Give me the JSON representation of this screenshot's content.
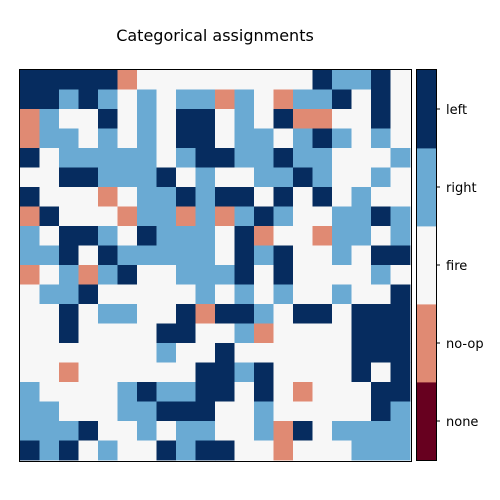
{
  "chart_data": {
    "type": "heatmap",
    "title": "Categorical assignments",
    "xlabel": "",
    "ylabel": "",
    "grid": false,
    "colorbar": {
      "placement": "right",
      "categories": [
        {
          "value": 0,
          "label": "none",
          "color": "#67001f"
        },
        {
          "value": 1,
          "label": "no-op",
          "color": "#e08a73"
        },
        {
          "value": 2,
          "label": "fire",
          "color": "#f7f7f7"
        },
        {
          "value": 3,
          "label": "right",
          "color": "#6aaad3"
        },
        {
          "value": 4,
          "label": "left",
          "color": "#062c5f"
        }
      ]
    },
    "rows": 20,
    "cols": 20,
    "grid_values": [
      [
        4,
        4,
        4,
        4,
        4,
        1,
        2,
        2,
        2,
        2,
        2,
        2,
        2,
        2,
        2,
        4,
        3,
        3,
        4,
        2
      ],
      [
        4,
        4,
        3,
        4,
        3,
        2,
        3,
        2,
        3,
        3,
        1,
        3,
        2,
        1,
        3,
        3,
        4,
        2,
        4,
        2
      ],
      [
        1,
        3,
        2,
        2,
        4,
        2,
        3,
        2,
        4,
        4,
        2,
        3,
        2,
        4,
        1,
        1,
        2,
        2,
        4,
        2
      ],
      [
        1,
        3,
        3,
        2,
        3,
        2,
        3,
        2,
        4,
        4,
        2,
        3,
        3,
        2,
        3,
        4,
        3,
        2,
        3,
        2
      ],
      [
        4,
        2,
        3,
        3,
        3,
        3,
        3,
        2,
        3,
        4,
        4,
        3,
        3,
        4,
        3,
        3,
        2,
        2,
        2,
        3
      ],
      [
        2,
        2,
        4,
        4,
        3,
        3,
        3,
        4,
        2,
        3,
        2,
        2,
        3,
        3,
        4,
        3,
        2,
        2,
        3,
        2
      ],
      [
        4,
        2,
        2,
        2,
        1,
        2,
        3,
        3,
        4,
        3,
        4,
        4,
        2,
        4,
        2,
        4,
        2,
        3,
        2,
        2
      ],
      [
        1,
        4,
        2,
        2,
        2,
        1,
        3,
        3,
        1,
        3,
        1,
        3,
        4,
        3,
        2,
        2,
        3,
        3,
        4,
        3
      ],
      [
        3,
        2,
        4,
        4,
        3,
        2,
        4,
        3,
        3,
        3,
        2,
        4,
        1,
        2,
        2,
        1,
        3,
        3,
        2,
        3
      ],
      [
        3,
        3,
        4,
        2,
        4,
        3,
        3,
        3,
        3,
        3,
        2,
        4,
        3,
        4,
        2,
        2,
        3,
        2,
        4,
        4
      ],
      [
        1,
        2,
        3,
        1,
        3,
        4,
        2,
        2,
        3,
        3,
        3,
        4,
        2,
        4,
        2,
        2,
        2,
        2,
        3,
        2
      ],
      [
        2,
        3,
        3,
        4,
        2,
        2,
        2,
        2,
        2,
        3,
        2,
        3,
        2,
        3,
        2,
        2,
        3,
        2,
        2,
        4
      ],
      [
        2,
        2,
        4,
        2,
        3,
        3,
        2,
        2,
        4,
        1,
        4,
        4,
        3,
        2,
        4,
        4,
        2,
        4,
        4,
        4
      ],
      [
        2,
        2,
        4,
        2,
        2,
        2,
        2,
        4,
        4,
        2,
        2,
        3,
        1,
        2,
        2,
        2,
        2,
        4,
        4,
        4
      ],
      [
        2,
        2,
        2,
        2,
        2,
        2,
        2,
        3,
        2,
        2,
        4,
        2,
        2,
        2,
        2,
        2,
        2,
        4,
        4,
        4
      ],
      [
        2,
        2,
        1,
        2,
        2,
        2,
        2,
        2,
        2,
        4,
        4,
        3,
        4,
        2,
        2,
        2,
        2,
        4,
        2,
        4
      ],
      [
        3,
        2,
        2,
        2,
        2,
        3,
        4,
        3,
        3,
        4,
        4,
        2,
        4,
        2,
        1,
        2,
        2,
        2,
        4,
        4
      ],
      [
        3,
        3,
        2,
        2,
        2,
        3,
        3,
        4,
        4,
        4,
        2,
        2,
        3,
        2,
        2,
        2,
        2,
        2,
        4,
        3
      ],
      [
        3,
        3,
        3,
        4,
        2,
        2,
        3,
        2,
        3,
        3,
        2,
        2,
        3,
        1,
        4,
        2,
        3,
        3,
        3,
        3
      ],
      [
        4,
        3,
        4,
        2,
        3,
        2,
        2,
        4,
        3,
        4,
        4,
        2,
        2,
        1,
        2,
        2,
        2,
        3,
        3,
        3
      ]
    ]
  }
}
